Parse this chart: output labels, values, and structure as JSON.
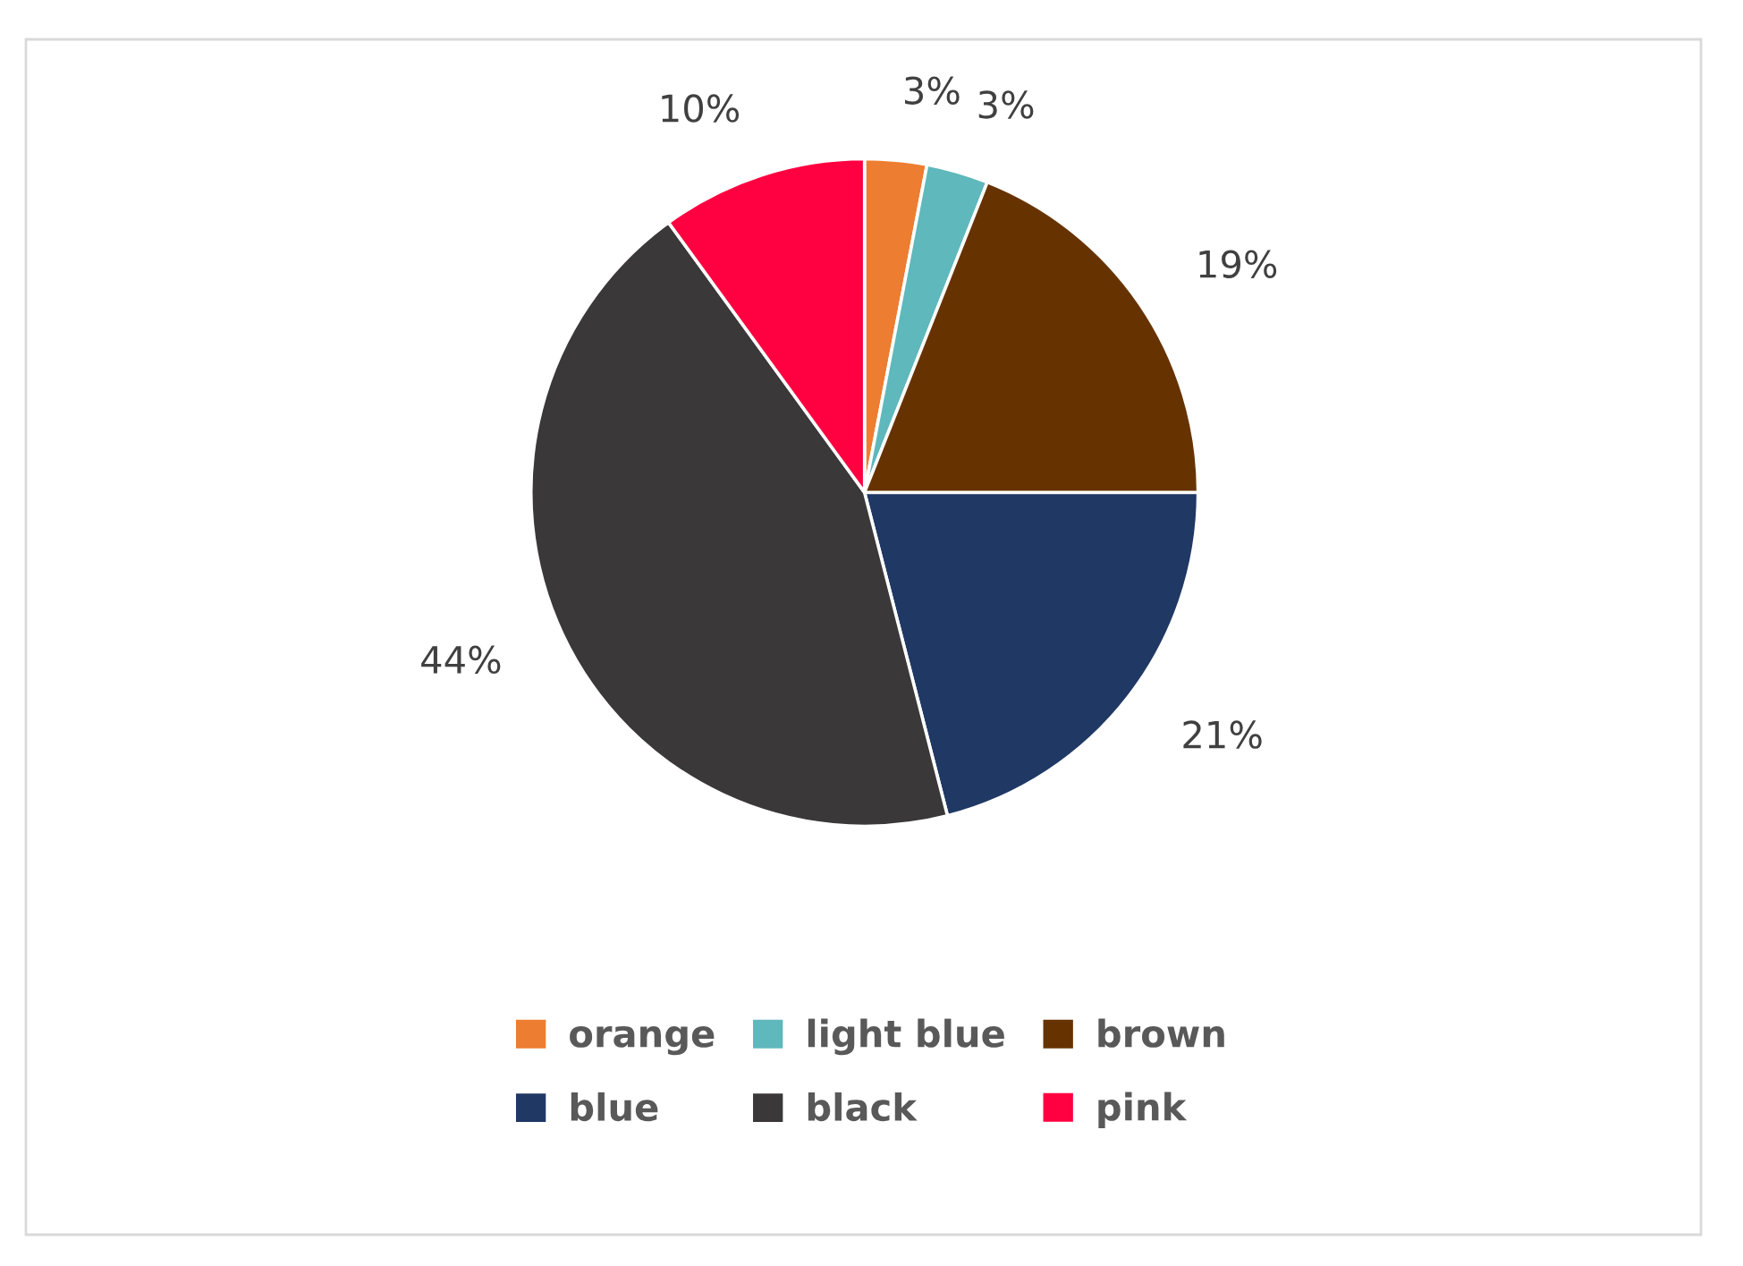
{
  "chart_data": {
    "type": "pie",
    "categories": [
      "orange",
      "light blue",
      "brown",
      "blue",
      "black",
      "pink"
    ],
    "values": [
      3,
      3,
      19,
      21,
      44,
      10
    ],
    "colors": [
      "#ed7d31",
      "#5fb8bb",
      "#663300",
      "#203864",
      "#3a3838",
      "#ff0040"
    ],
    "value_labels": [
      "3%",
      "3%",
      "19%",
      "21%",
      "44%",
      "10%"
    ],
    "legend": "bottom"
  }
}
